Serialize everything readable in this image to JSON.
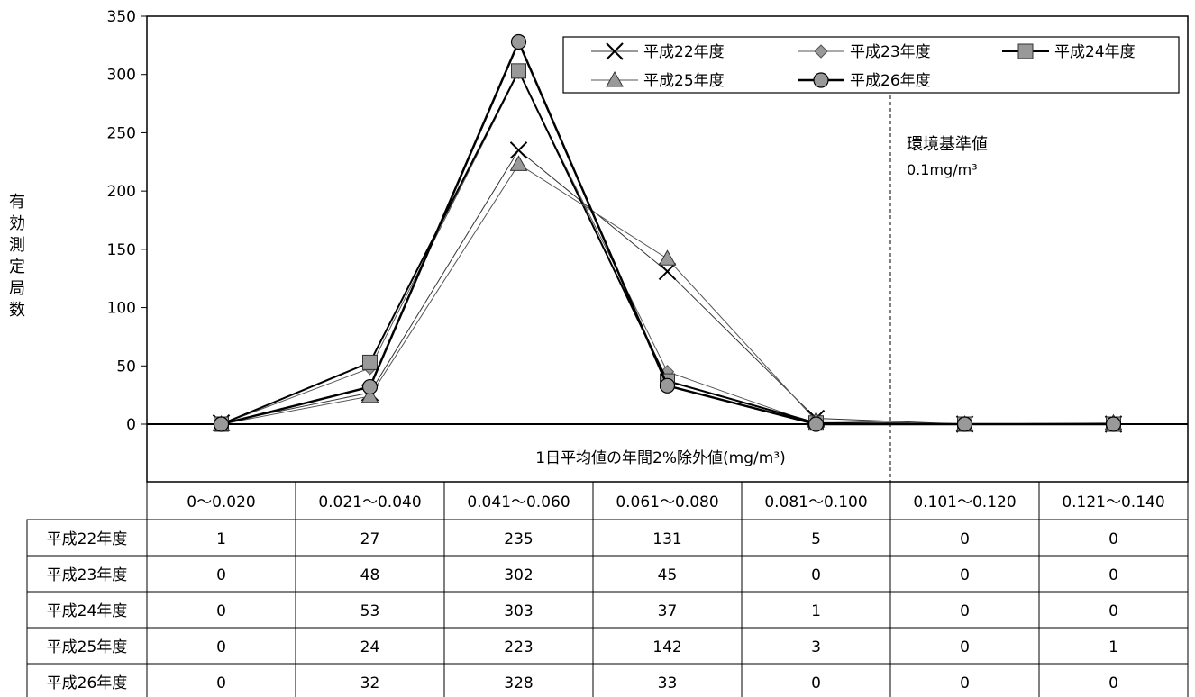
{
  "chart_data": {
    "type": "line",
    "categories": [
      "0～0.020",
      "0.021～0.040",
      "0.041～0.060",
      "0.061～0.080",
      "0.081～0.100",
      "0.101～0.120",
      "0.121～0.140"
    ],
    "series": [
      {
        "name": "平成22年度",
        "marker": "x",
        "values": [
          1,
          27,
          235,
          131,
          5,
          0,
          0
        ]
      },
      {
        "name": "平成23年度",
        "marker": "diamond",
        "values": [
          0,
          48,
          302,
          45,
          0,
          0,
          0
        ]
      },
      {
        "name": "平成24年度",
        "marker": "square",
        "values": [
          0,
          53,
          303,
          37,
          1,
          0,
          0
        ]
      },
      {
        "name": "平成25年度",
        "marker": "triangle",
        "values": [
          0,
          24,
          223,
          142,
          3,
          0,
          1
        ]
      },
      {
        "name": "平成26年度",
        "marker": "circle",
        "values": [
          0,
          32,
          328,
          33,
          0,
          0,
          0
        ]
      }
    ],
    "ylabel": "有効測定局数",
    "xlabel": "1日平均値の年間2%除外値(mg/m³)",
    "ylim": [
      0,
      350
    ],
    "yticks": [
      0,
      50,
      100,
      150,
      200,
      250,
      300,
      350
    ],
    "grid": false,
    "legend_position": "top-right",
    "reference_line": {
      "after_category": "0.081～0.100",
      "label": "環境基準値",
      "value_label": "0.1mg/m³"
    },
    "data_table": true
  }
}
